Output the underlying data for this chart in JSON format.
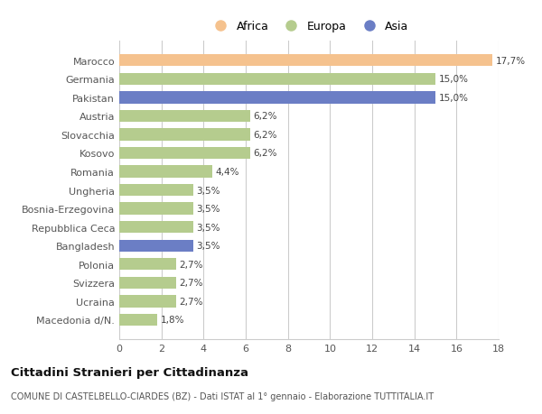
{
  "categories": [
    "Marocco",
    "Germania",
    "Pakistan",
    "Austria",
    "Slovacchia",
    "Kosovo",
    "Romania",
    "Ungheria",
    "Bosnia-Erzegovina",
    "Repubblica Ceca",
    "Bangladesh",
    "Polonia",
    "Svizzera",
    "Ucraina",
    "Macedonia d/N."
  ],
  "values": [
    17.7,
    15.0,
    15.0,
    6.2,
    6.2,
    6.2,
    4.4,
    3.5,
    3.5,
    3.5,
    3.5,
    2.7,
    2.7,
    2.7,
    1.8
  ],
  "labels": [
    "17,7%",
    "15,0%",
    "15,0%",
    "6,2%",
    "6,2%",
    "6,2%",
    "4,4%",
    "3,5%",
    "3,5%",
    "3,5%",
    "3,5%",
    "2,7%",
    "2,7%",
    "2,7%",
    "1,8%"
  ],
  "colors": [
    "#f5c28e",
    "#b5cc8e",
    "#6b7ec5",
    "#b5cc8e",
    "#b5cc8e",
    "#b5cc8e",
    "#b5cc8e",
    "#b5cc8e",
    "#b5cc8e",
    "#b5cc8e",
    "#6b7ec5",
    "#b5cc8e",
    "#b5cc8e",
    "#b5cc8e",
    "#b5cc8e"
  ],
  "legend_labels": [
    "Africa",
    "Europa",
    "Asia"
  ],
  "legend_colors": [
    "#f5c28e",
    "#b5cc8e",
    "#6b7ec5"
  ],
  "xlim": [
    0,
    18
  ],
  "xticks": [
    0,
    2,
    4,
    6,
    8,
    10,
    12,
    14,
    16,
    18
  ],
  "title": "Cittadini Stranieri per Cittadinanza",
  "subtitle": "COMUNE DI CASTELBELLO-CIARDES (BZ) - Dati ISTAT al 1° gennaio - Elaborazione TUTTITALIA.IT",
  "background_color": "#ffffff",
  "grid_color": "#cccccc",
  "bar_height": 0.65,
  "figsize": [
    6.0,
    4.6
  ],
  "dpi": 100
}
